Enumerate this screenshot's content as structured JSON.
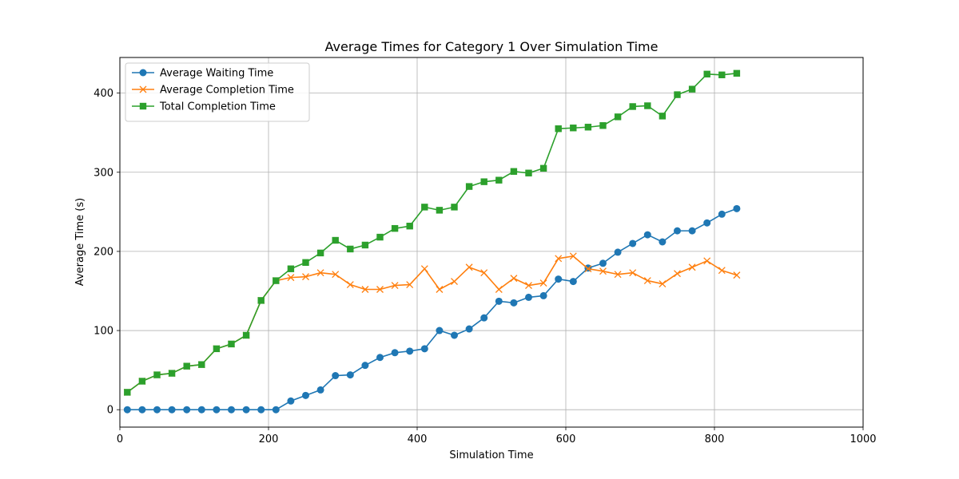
{
  "chart_data": {
    "type": "line",
    "title": "Average Times for Category 1 Over Simulation Time",
    "xlabel": "Simulation Time",
    "ylabel": "Average Time (s)",
    "xlim": [
      0,
      1000
    ],
    "ylim": [
      -22,
      445
    ],
    "xticks": [
      0,
      200,
      400,
      600,
      800,
      1000
    ],
    "yticks": [
      0,
      100,
      200,
      300,
      400
    ],
    "xtick_labels": [
      "0",
      "200",
      "400",
      "600",
      "800",
      "1000"
    ],
    "ytick_labels": [
      "0",
      "100",
      "200",
      "300",
      "400"
    ],
    "grid": true,
    "legend_position": "top-left",
    "x": [
      10,
      30,
      50,
      70,
      90,
      110,
      130,
      150,
      170,
      190,
      210,
      230,
      250,
      270,
      290,
      310,
      330,
      350,
      370,
      390,
      410,
      430,
      450,
      470,
      490,
      510,
      530,
      550,
      570,
      590,
      610,
      630,
      650,
      670,
      690,
      710,
      730,
      750,
      770,
      790,
      810,
      830
    ],
    "series": [
      {
        "name": "Average Waiting Time",
        "color": "#1f77b4",
        "marker": "circle",
        "values": [
          0,
          0,
          0,
          0,
          0,
          0,
          0,
          0,
          0,
          0,
          0,
          11,
          18,
          25,
          43,
          44,
          56,
          66,
          72,
          74,
          77,
          100,
          94,
          102,
          116,
          137,
          135,
          142,
          144,
          165,
          162,
          179,
          185,
          199,
          210,
          221,
          212,
          226,
          226,
          236,
          247,
          254
        ]
      },
      {
        "name": "Average Completion Time",
        "color": "#ff7f0e",
        "marker": "x",
        "values": [
          22,
          36,
          44,
          46,
          55,
          57,
          77,
          83,
          94,
          138,
          163,
          167,
          168,
          173,
          171,
          158,
          152,
          152,
          157,
          158,
          178,
          152,
          162,
          180,
          173,
          152,
          166,
          157,
          160,
          191,
          194,
          178,
          175,
          171,
          173,
          163,
          159,
          172,
          180,
          188,
          176,
          170
        ]
      },
      {
        "name": "Total Completion Time",
        "color": "#2ca02c",
        "marker": "square",
        "values": [
          22,
          36,
          44,
          46,
          55,
          57,
          77,
          83,
          94,
          138,
          163,
          178,
          186,
          198,
          214,
          203,
          208,
          218,
          229,
          232,
          256,
          252,
          256,
          282,
          288,
          290,
          301,
          299,
          305,
          355,
          356,
          357,
          359,
          370,
          383,
          384,
          371,
          398,
          405,
          424,
          423,
          425
        ]
      }
    ]
  }
}
